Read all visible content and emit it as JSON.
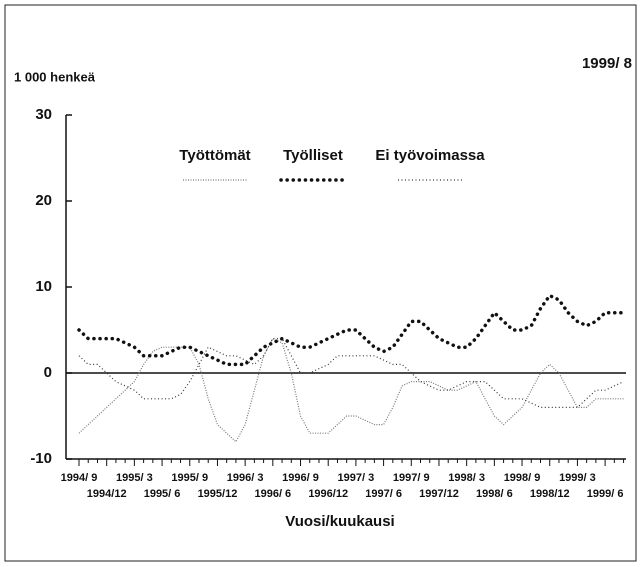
{
  "chart_data": {
    "type": "line",
    "unit_label": "1 000 henkeä",
    "date_label": "1999/ 8",
    "xlabel": "Vuosi/kuukausi",
    "categories": [
      "1994/ 9",
      null,
      null,
      "1994/12",
      null,
      null,
      "1995/ 3",
      null,
      null,
      "1995/ 6",
      null,
      null,
      "1995/ 9",
      null,
      null,
      "1995/12",
      null,
      null,
      "1996/ 3",
      null,
      null,
      "1996/ 6",
      null,
      null,
      "1996/ 9",
      null,
      null,
      "1996/12",
      null,
      null,
      "1997/ 3",
      null,
      null,
      "1997/ 6",
      null,
      null,
      "1997/ 9",
      null,
      null,
      "1997/12",
      null,
      null,
      "1998/ 3",
      null,
      null,
      "1998/ 6",
      null,
      null,
      "1998/ 9",
      null,
      null,
      "1998/12",
      null,
      null,
      "1999/ 3",
      null,
      null,
      "1999/ 6",
      null,
      null
    ],
    "series": [
      {
        "name": "Työttömät",
        "color": "#777777",
        "values": [
          -7,
          -6,
          -5,
          -4,
          -3,
          -2,
          -1,
          1,
          2.5,
          3,
          3,
          3,
          3,
          1,
          -3,
          -6,
          -7,
          -8,
          -6,
          -2,
          2,
          4,
          3.5,
          0,
          -5,
          -7,
          -7,
          -7,
          -6,
          -5,
          -5,
          -5.5,
          -6,
          -6,
          -4,
          -1.5,
          -1,
          -1,
          -1,
          -1.5,
          -2,
          -2,
          -1.5,
          -1,
          -3,
          -5,
          -6,
          -5,
          -4,
          -2,
          0,
          1,
          0,
          -2,
          -4,
          -4,
          -3,
          -3,
          -3,
          -3
        ]
      },
      {
        "name": "Työlliset",
        "color": "#111111",
        "values": [
          5,
          4,
          4,
          4,
          4,
          3.5,
          3,
          2,
          2,
          2,
          2.5,
          3,
          3,
          2.5,
          2,
          1.5,
          1,
          1,
          1,
          2,
          3,
          3.5,
          4,
          3.5,
          3,
          3,
          3.5,
          4,
          4.5,
          5,
          5,
          4,
          3,
          2.5,
          3,
          4.5,
          6,
          6,
          5,
          4,
          3.5,
          3,
          3,
          4,
          5.5,
          7,
          6,
          5,
          5,
          5.5,
          7.5,
          9,
          8.5,
          7,
          6,
          5.5,
          6,
          7,
          7,
          7
        ]
      },
      {
        "name": "Ei työvoimassa",
        "color": "#333333",
        "values": [
          2,
          1,
          1,
          0,
          -1,
          -1.5,
          -2,
          -3,
          -3,
          -3,
          -3,
          -2.5,
          -1,
          1,
          3,
          2.5,
          2,
          2,
          1.5,
          1,
          2,
          4,
          4,
          2,
          0,
          0,
          0.5,
          1,
          2,
          2,
          2,
          2,
          2,
          1.5,
          1,
          1,
          0,
          -1,
          -1.5,
          -2,
          -2,
          -1.5,
          -1,
          -1,
          -1,
          -2,
          -3,
          -3,
          -3,
          -3.5,
          -4,
          -4,
          -4,
          -4,
          -4,
          -3,
          -2,
          -2,
          -1.5,
          -1
        ]
      }
    ],
    "ylim": [
      -10,
      30
    ],
    "yticks": [
      -10,
      0,
      10,
      20,
      30
    ],
    "zero_line": 0
  }
}
